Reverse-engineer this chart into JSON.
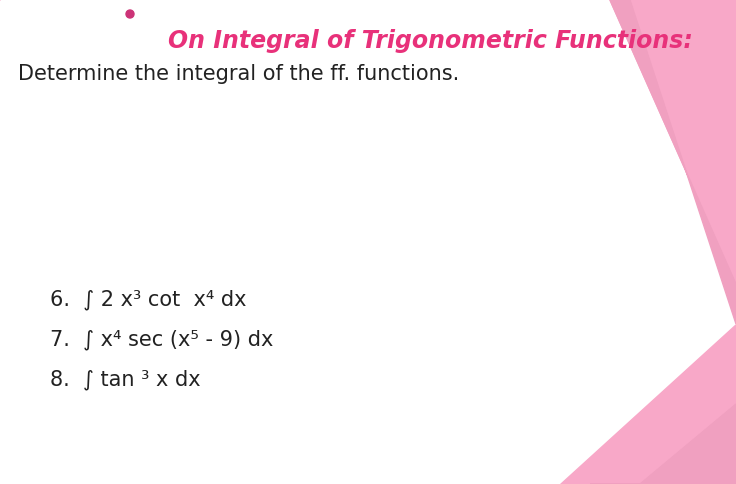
{
  "title": "On Integral of Trigonometric Functions:",
  "subtitle": "Determine the integral of the ff. functions.",
  "items": [
    "6.  ∫ 2 x³ cot  x⁴ dx",
    "7.  ∫ x⁴ sec (x⁵ - 9) dx",
    "8.  ∫ tan ³ x dx"
  ],
  "title_color": "#e8317a",
  "subtitle_color": "#222222",
  "item_color": "#222222",
  "bg_color": "#ffffff",
  "pink_light": "#f8a8c8",
  "pink_dark": "#e8317a",
  "title_fontsize": 17,
  "subtitle_fontsize": 15,
  "item_fontsize": 15,
  "fig_width": 7.36,
  "fig_height": 4.84,
  "dpi": 100
}
